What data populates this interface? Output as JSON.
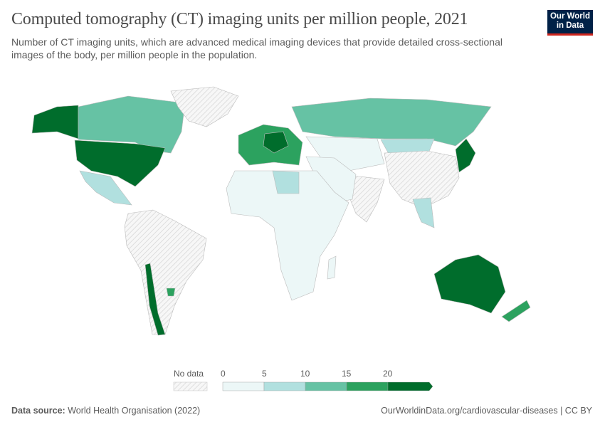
{
  "title": "Computed tomography (CT) imaging units per million people, 2021",
  "subtitle": "Number of CT imaging units, which are advanced medical imaging devices that provide detailed cross-sectional images of the body, per million people in the population.",
  "logo": {
    "line1": "Our World",
    "line2": "in Data"
  },
  "legend": {
    "no_data_label": "No data",
    "ticks": [
      "0",
      "5",
      "10",
      "15",
      "20"
    ],
    "bins": [
      {
        "range": "0-5",
        "color": "#ecf7f7"
      },
      {
        "range": "5-10",
        "color": "#b1e0df"
      },
      {
        "range": "10-15",
        "color": "#66c2a4"
      },
      {
        "range": "15-20",
        "color": "#2ca25f"
      },
      {
        "range": "20+",
        "color": "#006d2c"
      }
    ]
  },
  "map_regions": [
    {
      "name": "Alaska (United States)",
      "bin": 4
    },
    {
      "name": "Canada",
      "bin": 2
    },
    {
      "name": "United States",
      "bin": 4
    },
    {
      "name": "Greenland",
      "bin": null
    },
    {
      "name": "Mexico",
      "bin": 1
    },
    {
      "name": "South America",
      "bin": null
    },
    {
      "name": "Chile",
      "bin": 4
    },
    {
      "name": "Uruguay",
      "bin": 3
    },
    {
      "name": "Europe",
      "bin": 3
    },
    {
      "name": "Central Europe",
      "bin": 4
    },
    {
      "name": "Russia",
      "bin": 2
    },
    {
      "name": "Central Asia",
      "bin": 0
    },
    {
      "name": "Mongolia",
      "bin": 1
    },
    {
      "name": "China",
      "bin": null
    },
    {
      "name": "India",
      "bin": null
    },
    {
      "name": "Middle East",
      "bin": 0
    },
    {
      "name": "Africa",
      "bin": 0
    },
    {
      "name": "Libya",
      "bin": 1
    },
    {
      "name": "Japan",
      "bin": 4
    },
    {
      "name": "Southeast Asia",
      "bin": 1
    },
    {
      "name": "Australia",
      "bin": 4
    },
    {
      "name": "New Zealand",
      "bin": 3
    },
    {
      "name": "Madagascar",
      "bin": 0
    }
  ],
  "footer": {
    "source_label": "Data source:",
    "source": "World Health Organisation (2022)",
    "url": "OurWorldinData.org/cardiovascular-diseases | CC BY"
  }
}
